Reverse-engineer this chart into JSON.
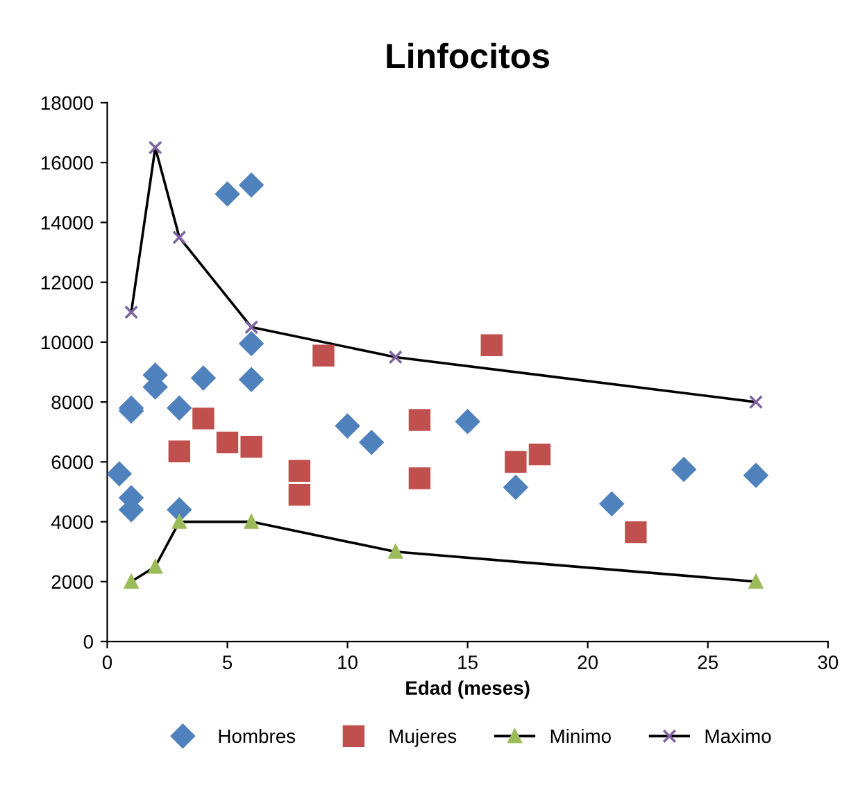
{
  "chart_data": {
    "type": "scatter",
    "title": "Linfocitos",
    "xlabel": "Edad (meses)",
    "xlim": [
      0,
      30
    ],
    "xticks": [
      0,
      5,
      10,
      15,
      20,
      25,
      30
    ],
    "ylim": [
      0,
      18000
    ],
    "yticks": [
      0,
      2000,
      4000,
      6000,
      8000,
      10000,
      12000,
      14000,
      16000,
      18000
    ],
    "grid": false,
    "legend": "bottom",
    "series": [
      {
        "name": "Hombres",
        "marker": "diamond",
        "color": "#4f81bd",
        "x": [
          0.5,
          1,
          1,
          1,
          1,
          2,
          2,
          3,
          3,
          4,
          5,
          6,
          6,
          6,
          10,
          11,
          15,
          17,
          21,
          24,
          27
        ],
        "values": [
          5600,
          7800,
          7700,
          4800,
          4400,
          8900,
          8500,
          7800,
          4400,
          8800,
          14950,
          15250,
          9950,
          8750,
          7200,
          6650,
          7350,
          5150,
          4600,
          5750,
          5550
        ]
      },
      {
        "name": "Mujeres",
        "marker": "square",
        "color": "#c0504d",
        "x": [
          3,
          4,
          5,
          6,
          8,
          8,
          9,
          13,
          13,
          16,
          17,
          18,
          22
        ],
        "values": [
          6350,
          7450,
          6650,
          6500,
          5700,
          4900,
          9550,
          7400,
          5450,
          9900,
          6000,
          6250,
          3650
        ]
      },
      {
        "name": "Minimo",
        "type": "line",
        "marker": "triangle",
        "color": "#000000",
        "colors": [
          "#9bbb59",
          "#9bbb59",
          "#9bbb59",
          "#9bbb59",
          "#9bbb59",
          "#9bbb59"
        ],
        "x": [
          1,
          2,
          3,
          6,
          12,
          27
        ],
        "values": [
          2000,
          2500,
          4000,
          4000,
          3000,
          2000
        ]
      },
      {
        "name": "Maximo",
        "type": "line",
        "marker": "cross",
        "color": "#000000",
        "colors": [
          "#8064a2",
          "#8064a2",
          "#8064a2",
          "#8064a2",
          "#8064a2",
          "#8064a2"
        ],
        "x": [
          1,
          2,
          3,
          6,
          12,
          27
        ],
        "values": [
          11000,
          16500,
          13500,
          10500,
          9500,
          8000
        ]
      }
    ]
  }
}
